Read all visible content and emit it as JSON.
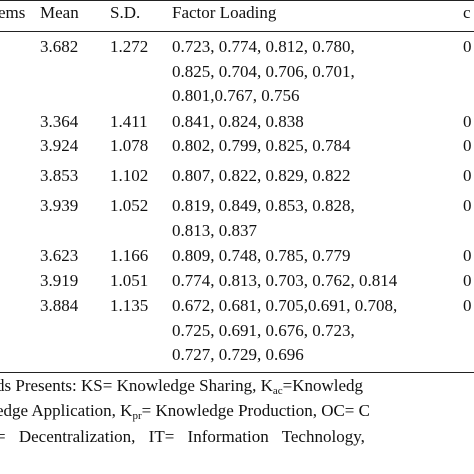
{
  "table": {
    "header": [
      "ems",
      "Mean",
      "S.D.",
      "Factor Loading",
      "c"
    ],
    "rows": [
      {
        "mean": "3.682",
        "sd": "1.272",
        "loadings": [
          "0.723, 0.774, 0.812, 0.780,",
          "0.825, 0.704, 0.706, 0.701,",
          "0.801,0.767, 0.756"
        ],
        "right": "0"
      },
      {
        "mean": "3.364",
        "sd": "1.411",
        "loadings": [
          "0.841, 0.824, 0.838"
        ],
        "right": "0"
      },
      {
        "mean": "3.924",
        "sd": "1.078",
        "loadings": [
          "0.802, 0.799, 0.825, 0.784"
        ],
        "right": "0"
      },
      {
        "mean": "3.853",
        "sd": "1.102",
        "loadings": [
          "0.807, 0.822, 0.829, 0.822"
        ],
        "right": "0"
      },
      {
        "mean": "3.939",
        "sd": "1.052",
        "loadings": [
          "0.819, 0.849, 0.853, 0.828,",
          "0.813, 0.837"
        ],
        "right": "0"
      },
      {
        "mean": "3.623",
        "sd": "1.166",
        "loadings": [
          "0.809, 0.748, 0.785, 0.779"
        ],
        "right": "0"
      },
      {
        "mean": "3.919",
        "sd": "1.051",
        "loadings": [
          "0.774, 0.813, 0.703, 0.762, 0.814"
        ],
        "right": "0"
      },
      {
        "mean": "3.884",
        "sd": "1.135",
        "loadings": [
          "0.672, 0.681, 0.705,0.691, 0.708,",
          "0.725, 0.691, 0.676, 0.723,",
          "0.727, 0.729, 0.696"
        ],
        "right": "0"
      }
    ]
  },
  "footnote": {
    "lines": [
      [
        "ds Presents: KS= Knowledge Sharing, K",
        "ac",
        "=Knowledg"
      ],
      [
        "edge Application, K",
        "pr",
        "= Knowledge Production, OC= C"
      ],
      [
        "= Decentralization, IT= Information Technology,"
      ]
    ]
  }
}
